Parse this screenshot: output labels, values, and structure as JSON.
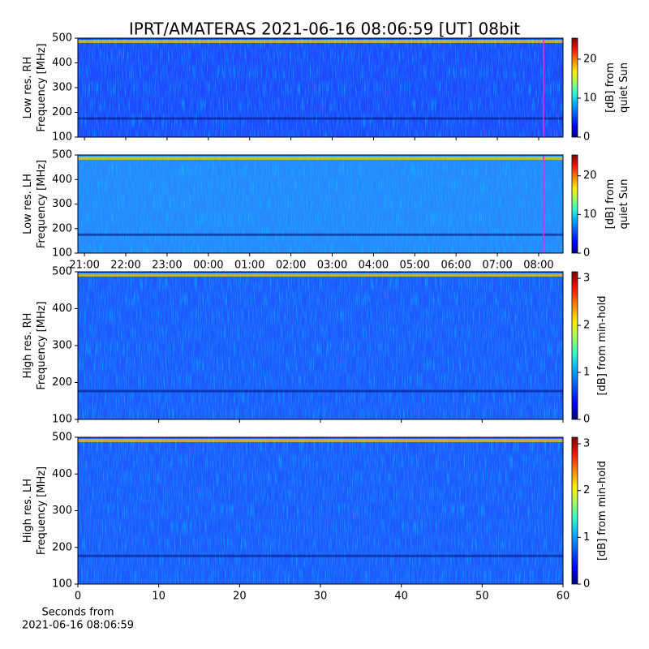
{
  "chart_data": [
    {
      "type": "heatmap",
      "title": "IPRT/AMATERAS 2021-06-16 08:06:59 [UT]   08bit",
      "ylabel": [
        "Low res. RH",
        "Frequency [MHz]"
      ],
      "ylim": [
        100,
        500
      ],
      "yticks": [
        100,
        200,
        300,
        400,
        500
      ],
      "xlim": [
        20.84,
        32.59
      ],
      "marker_x": 32.12,
      "marker_color": "#e030e0",
      "colorbar_label": [
        "[dB] from",
        "quiet Sun"
      ],
      "clim": [
        0,
        25.4
      ],
      "cticks": [
        0,
        10,
        20
      ]
    },
    {
      "type": "heatmap",
      "ylabel": [
        "Low res. LH",
        "Frequency [MHz]"
      ],
      "ylim": [
        100,
        500
      ],
      "yticks": [
        100,
        200,
        300,
        400,
        500
      ],
      "xlim": [
        20.84,
        32.59
      ],
      "xticks": [
        {
          "value": 21,
          "label": "21:00"
        },
        {
          "value": 22,
          "label": "22:00"
        },
        {
          "value": 23,
          "label": "23:00"
        },
        {
          "value": 24,
          "label": "00:00"
        },
        {
          "value": 25,
          "label": "01:00"
        },
        {
          "value": 26,
          "label": "02:00"
        },
        {
          "value": 27,
          "label": "03:00"
        },
        {
          "value": 28,
          "label": "04:00"
        },
        {
          "value": 29,
          "label": "05:00"
        },
        {
          "value": 30,
          "label": "06:00"
        },
        {
          "value": 31,
          "label": "07:00"
        },
        {
          "value": 32,
          "label": "08:00"
        }
      ],
      "marker_x": 32.12,
      "marker_color": "#e030e0",
      "colorbar_label": [
        "[dB] from",
        "quiet Sun"
      ],
      "clim": [
        0,
        25.4
      ],
      "cticks": [
        0,
        10,
        20
      ]
    },
    {
      "type": "heatmap",
      "ylabel": [
        "High res. RH",
        "Frequency [MHz]"
      ],
      "ylim": [
        100,
        500
      ],
      "yticks": [
        100,
        200,
        300,
        400,
        500
      ],
      "xlim": [
        0,
        60
      ],
      "colorbar_label": [
        "[dB] from min-hold"
      ],
      "clim": [
        0,
        3.14
      ],
      "cticks": [
        0,
        1,
        2,
        3
      ]
    },
    {
      "type": "heatmap",
      "ylabel": [
        "High res. LH",
        "Frequency [MHz]"
      ],
      "ylim": [
        100,
        500
      ],
      "yticks": [
        100,
        200,
        300,
        400,
        500
      ],
      "xlim": [
        0,
        60
      ],
      "xticks": [
        0,
        10,
        20,
        30,
        40,
        50,
        60
      ],
      "xlabel": [
        "Seconds from",
        "2021-06-16 08:06:59"
      ],
      "colorbar_label": [
        "[dB] from min-hold"
      ],
      "clim": [
        0,
        3.14
      ],
      "cticks": [
        0,
        1,
        2,
        3
      ]
    }
  ]
}
